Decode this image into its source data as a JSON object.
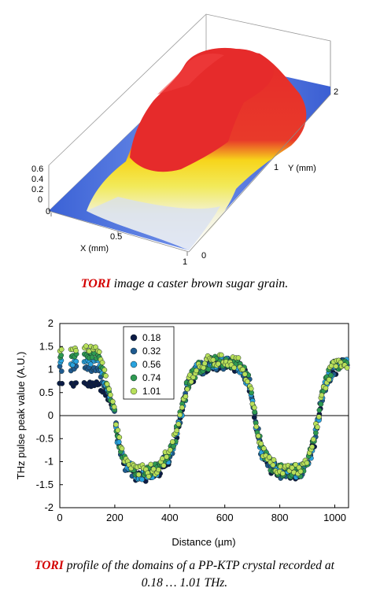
{
  "figure_top": {
    "caption_highlight": "TORI",
    "caption_rest": " image a caster brown sugar grain.",
    "x_axis_label": "X (mm)",
    "y_axis_label": "Y (mm)",
    "x_ticks": [
      "0",
      "0.5",
      "1"
    ],
    "y_ticks": [
      "0",
      "1",
      "2"
    ],
    "z_ticks": [
      "0",
      "0.2",
      "0.4",
      "0.6"
    ]
  },
  "figure_bottom": {
    "caption_highlight": "TORI",
    "caption_line1_rest": " profile of the domains of a PP-KTP crystal recorded at",
    "caption_line2": "0.18 … 1.01 THz."
  },
  "chart_data": {
    "type": "scatter",
    "xlabel": "Distance (µm)",
    "ylabel": "THz pulse peak value (A.U.)",
    "xlim": [
      0,
      1050
    ],
    "ylim": [
      -2,
      2
    ],
    "x_ticks": [
      0,
      200,
      400,
      600,
      800,
      1000
    ],
    "y_ticks": [
      -2,
      -1.5,
      -1,
      -0.5,
      0,
      0.5,
      1,
      1.5,
      2
    ],
    "legend_position": "top-left",
    "series": [
      {
        "name": "0.18",
        "color": "#0b1a45",
        "values_ref": "profile"
      },
      {
        "name": "0.32",
        "color": "#1f5a8f",
        "values_ref": "profile"
      },
      {
        "name": "0.56",
        "color": "#29a3df",
        "values_ref": "profile"
      },
      {
        "name": "0.74",
        "color": "#2e9a52",
        "values_ref": "profile"
      },
      {
        "name": "1.01",
        "color": "#b8e05a",
        "values_ref": "profile"
      }
    ],
    "profile_x": [
      0,
      50,
      100,
      120,
      140,
      160,
      180,
      195,
      210,
      240,
      280,
      320,
      360,
      400,
      430,
      450,
      470,
      500,
      540,
      580,
      620,
      660,
      690,
      710,
      730,
      760,
      800,
      840,
      880,
      910,
      935,
      960,
      990,
      1020,
      1045
    ],
    "profile_y": [
      0.68,
      0.72,
      0.75,
      0.72,
      0.68,
      0.55,
      0.3,
      0.1,
      -0.45,
      -1.05,
      -1.25,
      -1.25,
      -1.15,
      -0.85,
      -0.3,
      0.3,
      0.75,
      1.0,
      1.12,
      1.15,
      1.15,
      1.05,
      0.7,
      -0.05,
      -0.7,
      -1.05,
      -1.2,
      -1.22,
      -1.2,
      -0.9,
      -0.2,
      0.6,
      1.0,
      1.12,
      1.1
    ],
    "low_x_offsets_note": ""
  }
}
